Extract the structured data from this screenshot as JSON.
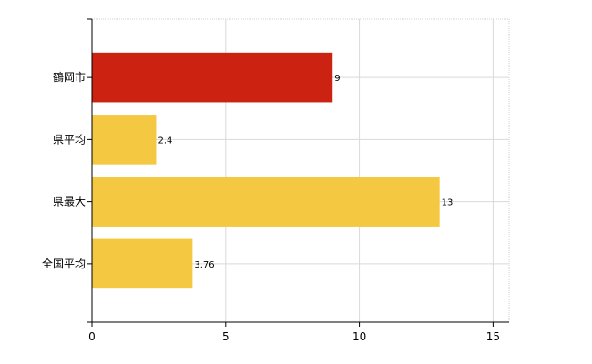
{
  "chart_data": {
    "type": "bar",
    "orientation": "horizontal",
    "categories": [
      "鶴岡市",
      "県平均",
      "県最大",
      "全国平均"
    ],
    "values": [
      9,
      2.4,
      13,
      3.76
    ],
    "data_labels": [
      "9",
      "2.4",
      "13",
      "3.76"
    ],
    "bar_colors": [
      "#cc2211",
      "#f5c842",
      "#f5c842",
      "#f5c842"
    ],
    "xlim": [
      0,
      15.6
    ],
    "xticks": [
      0,
      5,
      10,
      15
    ],
    "grid": true,
    "legend": "none",
    "title": "",
    "xlabel": "",
    "ylabel": ""
  }
}
